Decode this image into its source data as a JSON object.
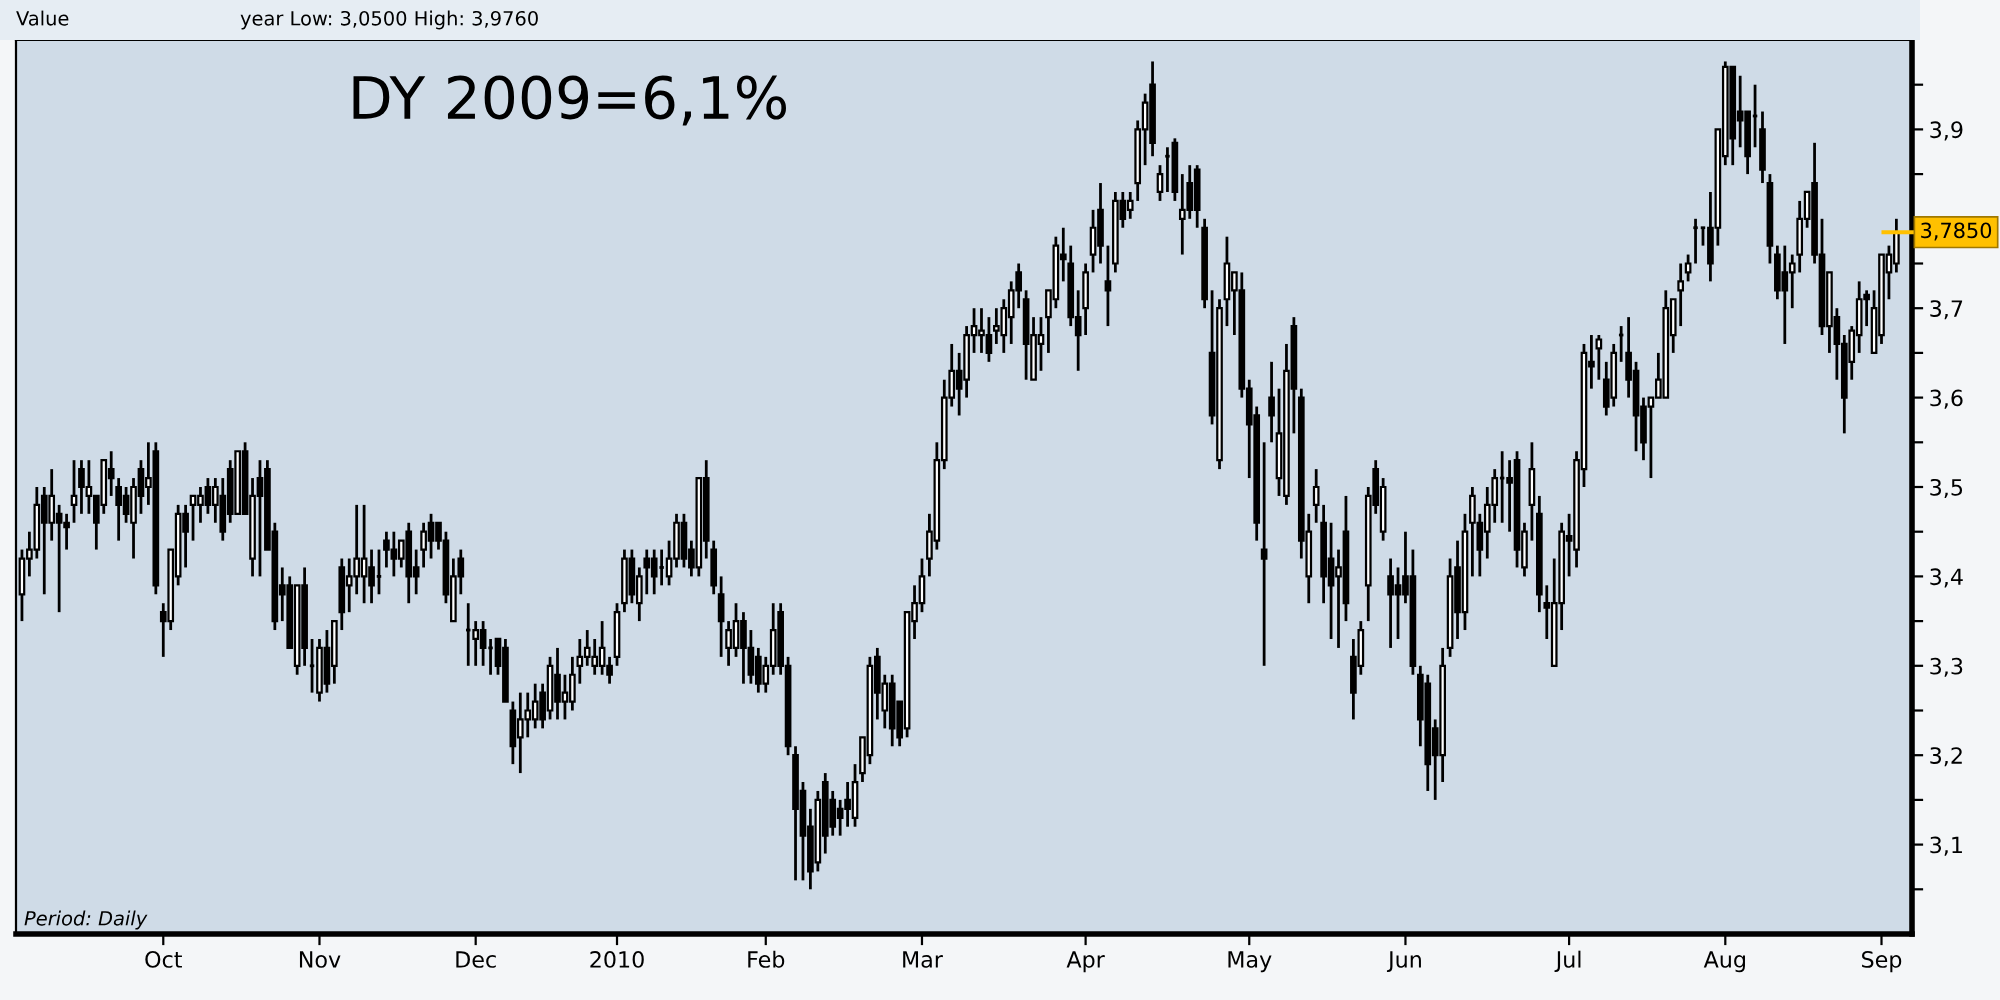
{
  "chart_data": {
    "type": "candlestick",
    "title": "DY 2009=6,1%",
    "annotations": [
      "Value",
      "year Low: 3,0500 High: 3,9760",
      "Period: Daily"
    ],
    "categories": [
      null,
      null,
      null,
      null,
      null,
      null,
      null,
      null,
      null,
      null,
      null,
      null,
      null,
      null,
      null,
      null,
      null,
      null,
      null,
      "Oct",
      null,
      null,
      null,
      null,
      null,
      null,
      null,
      null,
      null,
      null,
      null,
      null,
      null,
      null,
      null,
      null,
      null,
      null,
      null,
      null,
      "Nov",
      null,
      null,
      null,
      null,
      null,
      null,
      null,
      null,
      null,
      null,
      null,
      null,
      null,
      null,
      null,
      null,
      null,
      null,
      null,
      null,
      "Dec",
      null,
      null,
      null,
      null,
      null,
      null,
      null,
      null,
      null,
      null,
      null,
      null,
      null,
      null,
      null,
      null,
      null,
      null,
      "2010",
      null,
      null,
      null,
      null,
      null,
      null,
      null,
      null,
      null,
      null,
      null,
      null,
      null,
      null,
      null,
      null,
      null,
      null,
      null,
      "Feb",
      null,
      null,
      null,
      null,
      null,
      null,
      null,
      null,
      null,
      null,
      null,
      null,
      null,
      null,
      null,
      null,
      null,
      null,
      null,
      null,
      "Mar",
      null,
      null,
      null,
      null,
      null,
      null,
      null,
      null,
      null,
      null,
      null,
      null,
      null,
      null,
      null,
      null,
      null,
      null,
      null,
      null,
      null,
      "Apr",
      null,
      null,
      null,
      null,
      null,
      null,
      null,
      null,
      null,
      null,
      null,
      null,
      null,
      null,
      null,
      null,
      null,
      null,
      null,
      null,
      null,
      "May",
      null,
      null,
      null,
      null,
      null,
      null,
      null,
      null,
      null,
      null,
      null,
      null,
      null,
      null,
      null,
      null,
      null,
      null,
      null,
      null,
      "Jun",
      null,
      null,
      null,
      null,
      null,
      null,
      null,
      null,
      null,
      null,
      null,
      null,
      null,
      null,
      null,
      null,
      null,
      null,
      null,
      null,
      null,
      "Jul",
      null,
      null,
      null,
      null,
      null,
      null,
      null,
      null,
      null,
      null,
      null,
      null,
      null,
      null,
      null,
      null,
      null,
      null,
      null,
      null,
      "Aug",
      null,
      null,
      null,
      null,
      null,
      null,
      null,
      null,
      null,
      null,
      null,
      null,
      null,
      null,
      null,
      null,
      null,
      null,
      null,
      null,
      "Sep",
      null,
      null
    ],
    "ohlc": [
      [
        3.38,
        3.43,
        3.35,
        3.42
      ],
      [
        3.42,
        3.45,
        3.4,
        3.43
      ],
      [
        3.43,
        3.5,
        3.42,
        3.48
      ],
      [
        3.49,
        3.5,
        3.38,
        3.46
      ],
      [
        3.46,
        3.52,
        3.44,
        3.49
      ],
      [
        3.47,
        3.48,
        3.36,
        3.46
      ],
      [
        3.46,
        3.47,
        3.43,
        3.455
      ],
      [
        3.48,
        3.53,
        3.46,
        3.49
      ],
      [
        3.52,
        3.53,
        3.47,
        3.5
      ],
      [
        3.49,
        3.53,
        3.47,
        3.5
      ],
      [
        3.49,
        3.49,
        3.43,
        3.46
      ],
      [
        3.48,
        3.53,
        3.47,
        3.53
      ],
      [
        3.52,
        3.54,
        3.49,
        3.51
      ],
      [
        3.5,
        3.51,
        3.44,
        3.48
      ],
      [
        3.49,
        3.5,
        3.46,
        3.47
      ],
      [
        3.46,
        3.51,
        3.42,
        3.5
      ],
      [
        3.52,
        3.53,
        3.47,
        3.49
      ],
      [
        3.5,
        3.55,
        3.48,
        3.51
      ],
      [
        3.54,
        3.55,
        3.38,
        3.39
      ],
      [
        3.36,
        3.37,
        3.31,
        3.35
      ],
      [
        3.35,
        3.43,
        3.34,
        3.43
      ],
      [
        3.4,
        3.48,
        3.39,
        3.47
      ],
      [
        3.47,
        3.48,
        3.41,
        3.45
      ],
      [
        3.48,
        3.49,
        3.44,
        3.49
      ],
      [
        3.48,
        3.5,
        3.46,
        3.49
      ],
      [
        3.5,
        3.51,
        3.47,
        3.48
      ],
      [
        3.48,
        3.51,
        3.46,
        3.5
      ],
      [
        3.49,
        3.51,
        3.44,
        3.45
      ],
      [
        3.52,
        3.53,
        3.46,
        3.47
      ],
      [
        3.47,
        3.54,
        3.47,
        3.54
      ],
      [
        3.54,
        3.55,
        3.47,
        3.47
      ],
      [
        3.42,
        3.51,
        3.4,
        3.49
      ],
      [
        3.51,
        3.53,
        3.4,
        3.49
      ],
      [
        3.52,
        3.53,
        3.43,
        3.43
      ],
      [
        3.45,
        3.46,
        3.34,
        3.35
      ],
      [
        3.39,
        3.41,
        3.35,
        3.38
      ],
      [
        3.39,
        3.4,
        3.32,
        3.32
      ],
      [
        3.3,
        3.39,
        3.29,
        3.39
      ],
      [
        3.39,
        3.41,
        3.3,
        3.32
      ],
      [
        3.3,
        3.33,
        3.27,
        3.3
      ],
      [
        3.27,
        3.33,
        3.26,
        3.32
      ],
      [
        3.32,
        3.34,
        3.27,
        3.28
      ],
      [
        3.3,
        3.35,
        3.28,
        3.35
      ],
      [
        3.41,
        3.42,
        3.34,
        3.36
      ],
      [
        3.39,
        3.42,
        3.36,
        3.4
      ],
      [
        3.4,
        3.48,
        3.38,
        3.42
      ],
      [
        3.4,
        3.48,
        3.37,
        3.42
      ],
      [
        3.41,
        3.43,
        3.37,
        3.39
      ],
      [
        3.4,
        3.43,
        3.38,
        3.4
      ],
      [
        3.44,
        3.45,
        3.41,
        3.43
      ],
      [
        3.43,
        3.45,
        3.4,
        3.42
      ],
      [
        3.42,
        3.44,
        3.41,
        3.44
      ],
      [
        3.45,
        3.46,
        3.37,
        3.4
      ],
      [
        3.41,
        3.43,
        3.38,
        3.4
      ],
      [
        3.43,
        3.46,
        3.41,
        3.45
      ],
      [
        3.46,
        3.47,
        3.42,
        3.44
      ],
      [
        3.46,
        3.46,
        3.43,
        3.44
      ],
      [
        3.44,
        3.45,
        3.37,
        3.38
      ],
      [
        3.35,
        3.42,
        3.35,
        3.4
      ],
      [
        3.42,
        3.43,
        3.38,
        3.4
      ],
      [
        3.34,
        3.37,
        3.3,
        3.34
      ],
      [
        3.33,
        3.35,
        3.3,
        3.34
      ],
      [
        3.34,
        3.35,
        3.3,
        3.32
      ],
      [
        3.32,
        3.33,
        3.29,
        3.32
      ],
      [
        3.33,
        3.33,
        3.29,
        3.3
      ],
      [
        3.32,
        3.33,
        3.26,
        3.26
      ],
      [
        3.25,
        3.26,
        3.19,
        3.21
      ],
      [
        3.22,
        3.27,
        3.18,
        3.24
      ],
      [
        3.24,
        3.27,
        3.22,
        3.25
      ],
      [
        3.24,
        3.28,
        3.23,
        3.26
      ],
      [
        3.27,
        3.28,
        3.23,
        3.24
      ],
      [
        3.25,
        3.31,
        3.24,
        3.3
      ],
      [
        3.29,
        3.32,
        3.24,
        3.26
      ],
      [
        3.26,
        3.29,
        3.24,
        3.27
      ],
      [
        3.26,
        3.31,
        3.25,
        3.29
      ],
      [
        3.3,
        3.33,
        3.28,
        3.31
      ],
      [
        3.31,
        3.34,
        3.3,
        3.32
      ],
      [
        3.3,
        3.33,
        3.29,
        3.31
      ],
      [
        3.3,
        3.35,
        3.29,
        3.32
      ],
      [
        3.3,
        3.31,
        3.28,
        3.29
      ],
      [
        3.31,
        3.37,
        3.3,
        3.36
      ],
      [
        3.37,
        3.43,
        3.36,
        3.42
      ],
      [
        3.42,
        3.43,
        3.37,
        3.38
      ],
      [
        3.37,
        3.41,
        3.35,
        3.4
      ],
      [
        3.42,
        3.43,
        3.38,
        3.41
      ],
      [
        3.42,
        3.43,
        3.38,
        3.4
      ],
      [
        3.41,
        3.43,
        3.39,
        3.41
      ],
      [
        3.4,
        3.44,
        3.39,
        3.42
      ],
      [
        3.42,
        3.47,
        3.41,
        3.46
      ],
      [
        3.46,
        3.47,
        3.41,
        3.42
      ],
      [
        3.43,
        3.44,
        3.4,
        3.41
      ],
      [
        3.41,
        3.51,
        3.4,
        3.51
      ],
      [
        3.51,
        3.53,
        3.42,
        3.44
      ],
      [
        3.43,
        3.44,
        3.38,
        3.39
      ],
      [
        3.38,
        3.4,
        3.31,
        3.35
      ],
      [
        3.32,
        3.35,
        3.3,
        3.34
      ],
      [
        3.32,
        3.37,
        3.31,
        3.35
      ],
      [
        3.35,
        3.36,
        3.28,
        3.32
      ],
      [
        3.32,
        3.34,
        3.28,
        3.29
      ],
      [
        3.31,
        3.32,
        3.27,
        3.28
      ],
      [
        3.28,
        3.31,
        3.27,
        3.3
      ],
      [
        3.3,
        3.37,
        3.29,
        3.34
      ],
      [
        3.36,
        3.37,
        3.29,
        3.3
      ],
      [
        3.3,
        3.31,
        3.2,
        3.21
      ],
      [
        3.2,
        3.21,
        3.06,
        3.14
      ],
      [
        3.16,
        3.17,
        3.06,
        3.11
      ],
      [
        3.12,
        3.14,
        3.05,
        3.07
      ],
      [
        3.08,
        3.16,
        3.07,
        3.15
      ],
      [
        3.17,
        3.18,
        3.09,
        3.11
      ],
      [
        3.15,
        3.16,
        3.11,
        3.12
      ],
      [
        3.14,
        3.15,
        3.11,
        3.13
      ],
      [
        3.15,
        3.17,
        3.12,
        3.14
      ],
      [
        3.13,
        3.19,
        3.12,
        3.17
      ],
      [
        3.18,
        3.22,
        3.17,
        3.22
      ],
      [
        3.2,
        3.31,
        3.19,
        3.3
      ],
      [
        3.31,
        3.32,
        3.24,
        3.27
      ],
      [
        3.25,
        3.29,
        3.23,
        3.28
      ],
      [
        3.28,
        3.29,
        3.21,
        3.23
      ],
      [
        3.26,
        3.26,
        3.21,
        3.22
      ],
      [
        3.23,
        3.36,
        3.22,
        3.36
      ],
      [
        3.35,
        3.39,
        3.33,
        3.37
      ],
      [
        3.37,
        3.42,
        3.36,
        3.4
      ],
      [
        3.42,
        3.47,
        3.4,
        3.45
      ],
      [
        3.44,
        3.55,
        3.43,
        3.53
      ],
      [
        3.53,
        3.62,
        3.52,
        3.6
      ],
      [
        3.6,
        3.66,
        3.59,
        3.63
      ],
      [
        3.63,
        3.65,
        3.58,
        3.61
      ],
      [
        3.62,
        3.68,
        3.6,
        3.67
      ],
      [
        3.67,
        3.7,
        3.65,
        3.68
      ],
      [
        3.67,
        3.7,
        3.65,
        3.675
      ],
      [
        3.67,
        3.69,
        3.64,
        3.65
      ],
      [
        3.675,
        3.7,
        3.66,
        3.68
      ],
      [
        3.67,
        3.71,
        3.65,
        3.7
      ],
      [
        3.69,
        3.73,
        3.66,
        3.72
      ],
      [
        3.74,
        3.75,
        3.7,
        3.72
      ],
      [
        3.71,
        3.72,
        3.62,
        3.66
      ],
      [
        3.62,
        3.69,
        3.62,
        3.67
      ],
      [
        3.66,
        3.69,
        3.63,
        3.67
      ],
      [
        3.69,
        3.72,
        3.65,
        3.72
      ],
      [
        3.71,
        3.78,
        3.7,
        3.77
      ],
      [
        3.76,
        3.79,
        3.73,
        3.755
      ],
      [
        3.75,
        3.77,
        3.68,
        3.69
      ],
      [
        3.69,
        3.72,
        3.63,
        3.67
      ],
      [
        3.7,
        3.75,
        3.67,
        3.74
      ],
      [
        3.76,
        3.81,
        3.74,
        3.79
      ],
      [
        3.81,
        3.84,
        3.75,
        3.77
      ],
      [
        3.73,
        3.77,
        3.68,
        3.72
      ],
      [
        3.75,
        3.83,
        3.74,
        3.82
      ],
      [
        3.82,
        3.83,
        3.79,
        3.8
      ],
      [
        3.81,
        3.83,
        3.8,
        3.82
      ],
      [
        3.84,
        3.91,
        3.82,
        3.9
      ],
      [
        3.9,
        3.94,
        3.86,
        3.93
      ],
      [
        3.95,
        3.976,
        3.87,
        3.885
      ],
      [
        3.83,
        3.86,
        3.82,
        3.85
      ],
      [
        3.87,
        3.88,
        3.83,
        3.87
      ],
      [
        3.885,
        3.89,
        3.82,
        3.83
      ],
      [
        3.8,
        3.85,
        3.76,
        3.81
      ],
      [
        3.84,
        3.86,
        3.8,
        3.81
      ],
      [
        3.855,
        3.86,
        3.79,
        3.81
      ],
      [
        3.79,
        3.8,
        3.7,
        3.71
      ],
      [
        3.65,
        3.72,
        3.57,
        3.58
      ],
      [
        3.53,
        3.71,
        3.52,
        3.7
      ],
      [
        3.71,
        3.78,
        3.68,
        3.75
      ],
      [
        3.72,
        3.74,
        3.67,
        3.74
      ],
      [
        3.72,
        3.74,
        3.6,
        3.61
      ],
      [
        3.61,
        3.62,
        3.51,
        3.57
      ],
      [
        3.58,
        3.59,
        3.44,
        3.46
      ],
      [
        3.43,
        3.55,
        3.3,
        3.42
      ],
      [
        3.6,
        3.64,
        3.55,
        3.58
      ],
      [
        3.51,
        3.61,
        3.49,
        3.56
      ],
      [
        3.49,
        3.66,
        3.48,
        3.63
      ],
      [
        3.68,
        3.69,
        3.56,
        3.61
      ],
      [
        3.6,
        3.61,
        3.42,
        3.44
      ],
      [
        3.4,
        3.47,
        3.37,
        3.45
      ],
      [
        3.48,
        3.52,
        3.46,
        3.5
      ],
      [
        3.46,
        3.48,
        3.37,
        3.4
      ],
      [
        3.42,
        3.46,
        3.33,
        3.39
      ],
      [
        3.4,
        3.43,
        3.32,
        3.41
      ],
      [
        3.45,
        3.49,
        3.35,
        3.37
      ],
      [
        3.31,
        3.33,
        3.24,
        3.27
      ],
      [
        3.3,
        3.35,
        3.29,
        3.34
      ],
      [
        3.39,
        3.5,
        3.35,
        3.49
      ],
      [
        3.52,
        3.53,
        3.47,
        3.48
      ],
      [
        3.45,
        3.51,
        3.44,
        3.5
      ],
      [
        3.4,
        3.42,
        3.32,
        3.38
      ],
      [
        3.39,
        3.41,
        3.33,
        3.38
      ],
      [
        3.4,
        3.45,
        3.37,
        3.38
      ],
      [
        3.4,
        3.43,
        3.29,
        3.3
      ],
      [
        3.29,
        3.3,
        3.21,
        3.24
      ],
      [
        3.28,
        3.29,
        3.16,
        3.19
      ],
      [
        3.23,
        3.24,
        3.15,
        3.2
      ],
      [
        3.2,
        3.32,
        3.17,
        3.3
      ],
      [
        3.32,
        3.42,
        3.31,
        3.4
      ],
      [
        3.41,
        3.44,
        3.33,
        3.36
      ],
      [
        3.36,
        3.47,
        3.34,
        3.45
      ],
      [
        3.46,
        3.5,
        3.4,
        3.49
      ],
      [
        3.46,
        3.47,
        3.4,
        3.43
      ],
      [
        3.45,
        3.5,
        3.42,
        3.48
      ],
      [
        3.48,
        3.52,
        3.46,
        3.51
      ],
      [
        3.51,
        3.54,
        3.46,
        3.51
      ],
      [
        3.51,
        3.53,
        3.45,
        3.505
      ],
      [
        3.53,
        3.54,
        3.41,
        3.43
      ],
      [
        3.41,
        3.46,
        3.4,
        3.45
      ],
      [
        3.48,
        3.55,
        3.44,
        3.52
      ],
      [
        3.47,
        3.49,
        3.36,
        3.38
      ],
      [
        3.37,
        3.39,
        3.33,
        3.365
      ],
      [
        3.3,
        3.42,
        3.3,
        3.37
      ],
      [
        3.37,
        3.46,
        3.34,
        3.45
      ],
      [
        3.445,
        3.47,
        3.4,
        3.44
      ],
      [
        3.43,
        3.54,
        3.41,
        3.53
      ],
      [
        3.52,
        3.66,
        3.5,
        3.65
      ],
      [
        3.64,
        3.67,
        3.61,
        3.635
      ],
      [
        3.655,
        3.67,
        3.62,
        3.665
      ],
      [
        3.62,
        3.64,
        3.58,
        3.59
      ],
      [
        3.6,
        3.66,
        3.59,
        3.65
      ],
      [
        3.67,
        3.68,
        3.64,
        3.67
      ],
      [
        3.65,
        3.69,
        3.6,
        3.62
      ],
      [
        3.63,
        3.64,
        3.54,
        3.58
      ],
      [
        3.59,
        3.6,
        3.53,
        3.55
      ],
      [
        3.59,
        3.6,
        3.51,
        3.6
      ],
      [
        3.6,
        3.65,
        3.6,
        3.62
      ],
      [
        3.6,
        3.72,
        3.6,
        3.7
      ],
      [
        3.67,
        3.71,
        3.65,
        3.71
      ],
      [
        3.72,
        3.75,
        3.68,
        3.73
      ],
      [
        3.74,
        3.76,
        3.73,
        3.75
      ],
      [
        3.79,
        3.8,
        3.75,
        3.79
      ],
      [
        3.79,
        3.79,
        3.77,
        3.79
      ],
      [
        3.79,
        3.83,
        3.73,
        3.75
      ],
      [
        3.79,
        3.9,
        3.77,
        3.9
      ],
      [
        3.87,
        3.976,
        3.86,
        3.97
      ],
      [
        3.97,
        3.97,
        3.86,
        3.89
      ],
      [
        3.92,
        3.96,
        3.88,
        3.91
      ],
      [
        3.92,
        3.92,
        3.85,
        3.87
      ],
      [
        3.915,
        3.95,
        3.88,
        3.915
      ],
      [
        3.9,
        3.92,
        3.84,
        3.855
      ],
      [
        3.84,
        3.85,
        3.75,
        3.77
      ],
      [
        3.76,
        3.77,
        3.71,
        3.72
      ],
      [
        3.74,
        3.77,
        3.66,
        3.72
      ],
      [
        3.74,
        3.76,
        3.7,
        3.75
      ],
      [
        3.76,
        3.82,
        3.74,
        3.8
      ],
      [
        3.8,
        3.83,
        3.79,
        3.83
      ],
      [
        3.84,
        3.885,
        3.75,
        3.76
      ],
      [
        3.76,
        3.8,
        3.67,
        3.68
      ],
      [
        3.68,
        3.74,
        3.65,
        3.74
      ],
      [
        3.69,
        3.7,
        3.62,
        3.66
      ],
      [
        3.66,
        3.67,
        3.56,
        3.6
      ],
      [
        3.64,
        3.68,
        3.62,
        3.675
      ],
      [
        3.67,
        3.73,
        3.65,
        3.71
      ],
      [
        3.715,
        3.72,
        3.68,
        3.71
      ],
      [
        3.65,
        3.72,
        3.65,
        3.7
      ],
      [
        3.67,
        3.76,
        3.66,
        3.76
      ],
      [
        3.74,
        3.77,
        3.71,
        3.76
      ],
      [
        3.75,
        3.8,
        3.74,
        3.785
      ]
    ],
    "ylim": [
      3.0,
      4.0
    ],
    "yticks": [
      {
        "value": 3.05,
        "label": null
      },
      {
        "value": 3.1,
        "label": "3,1"
      },
      {
        "value": 3.15,
        "label": null
      },
      {
        "value": 3.2,
        "label": "3,2"
      },
      {
        "value": 3.25,
        "label": null
      },
      {
        "value": 3.3,
        "label": "3,3"
      },
      {
        "value": 3.35,
        "label": null
      },
      {
        "value": 3.4,
        "label": "3,4"
      },
      {
        "value": 3.45,
        "label": null
      },
      {
        "value": 3.5,
        "label": "3,5"
      },
      {
        "value": 3.55,
        "label": null
      },
      {
        "value": 3.6,
        "label": "3,6"
      },
      {
        "value": 3.65,
        "label": null
      },
      {
        "value": 3.7,
        "label": "3,7"
      },
      {
        "value": 3.75,
        "label": null
      },
      {
        "value": 3.8,
        "label": null
      },
      {
        "value": 3.85,
        "label": null
      },
      {
        "value": 3.9,
        "label": "3,9"
      },
      {
        "value": 3.95,
        "label": null
      }
    ],
    "ref_lines": [
      {
        "axis": "y",
        "value": 3.785,
        "label": "3,7850",
        "color": "#ffc000"
      }
    ]
  }
}
